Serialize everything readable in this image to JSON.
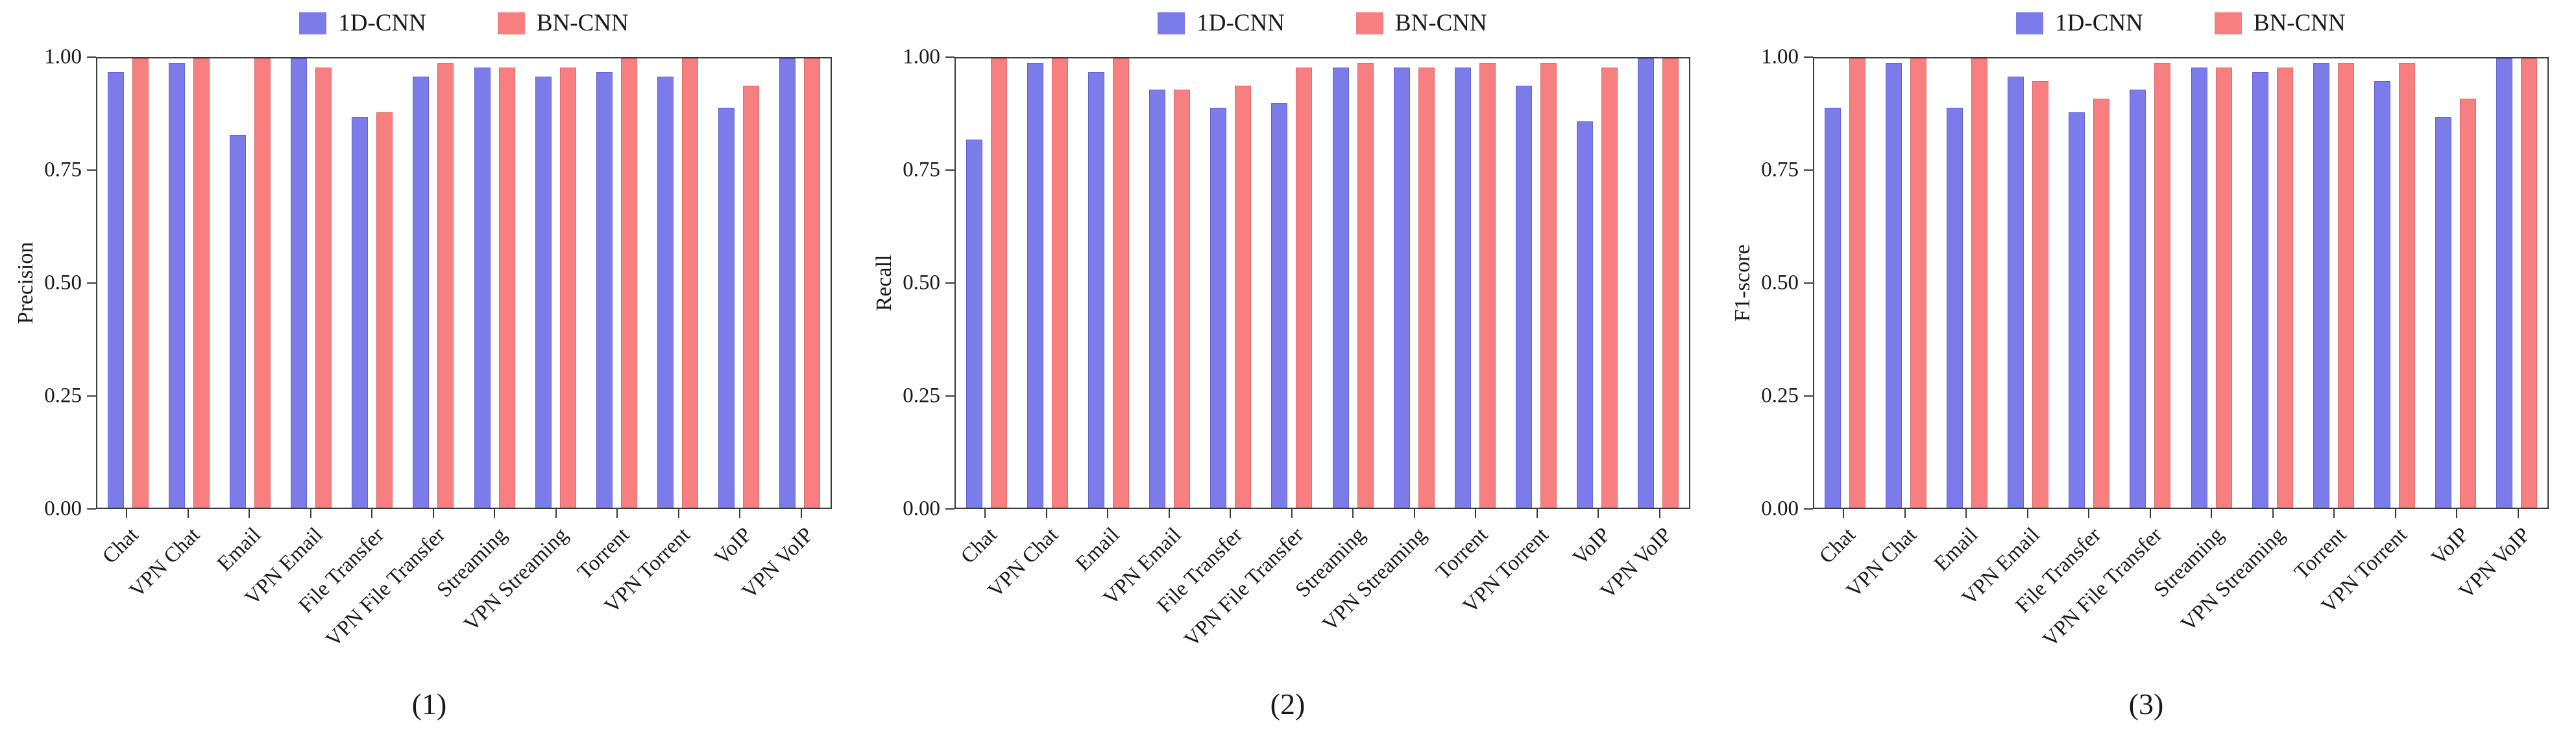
{
  "colors": {
    "axis": "#3c3c3c",
    "text": "#1a1a1a",
    "background": "#ffffff"
  },
  "chart_data": [
    {
      "type": "bar",
      "panel_caption": "(1)",
      "ylabel": "Precision",
      "ylim": [
        0,
        1
      ],
      "yticks": [
        "0.00",
        "0.25",
        "0.50",
        "0.75",
        "1.00"
      ],
      "grid": "off",
      "legend_position": "top-center",
      "categories": [
        "Chat",
        "VPN Chat",
        "Email",
        "VPN Email",
        "File Transfer",
        "VPN File Transfer",
        "Streaming",
        "VPN Streaming",
        "Torrent",
        "VPN Torrent",
        "VoIP",
        "VPN VoIP"
      ],
      "series": [
        {
          "name": "1D-CNN",
          "color": "#7b7cea",
          "edge_color": "#6263d2",
          "values": [
            0.97,
            0.99,
            0.83,
            1.0,
            0.87,
            0.96,
            0.98,
            0.96,
            0.97,
            0.96,
            0.89,
            1.0
          ]
        },
        {
          "name": "BN-CNN",
          "color": "#f77f7f",
          "edge_color": "#dd6a6a",
          "values": [
            1.0,
            1.0,
            1.0,
            0.98,
            0.88,
            0.99,
            0.98,
            0.98,
            1.0,
            1.0,
            0.94,
            1.0
          ]
        }
      ]
    },
    {
      "type": "bar",
      "panel_caption": "(2)",
      "ylabel": "Recall",
      "ylim": [
        0,
        1
      ],
      "yticks": [
        "0.00",
        "0.25",
        "0.50",
        "0.75",
        "1.00"
      ],
      "grid": "off",
      "legend_position": "top-center",
      "categories": [
        "Chat",
        "VPN Chat",
        "Email",
        "VPN Email",
        "File Transfer",
        "VPN File Transfer",
        "Streaming",
        "VPN Streaming",
        "Torrent",
        "VPN Torrent",
        "VoIP",
        "VPN VoIP"
      ],
      "series": [
        {
          "name": "1D-CNN",
          "color": "#7b7cea",
          "edge_color": "#6263d2",
          "values": [
            0.82,
            0.99,
            0.97,
            0.93,
            0.89,
            0.9,
            0.98,
            0.98,
            0.98,
            0.94,
            0.86,
            1.0
          ]
        },
        {
          "name": "BN-CNN",
          "color": "#f77f7f",
          "edge_color": "#dd6a6a",
          "values": [
            1.0,
            1.0,
            1.0,
            0.93,
            0.94,
            0.98,
            0.99,
            0.98,
            0.99,
            0.99,
            0.98,
            1.0
          ]
        }
      ]
    },
    {
      "type": "bar",
      "panel_caption": "(3)",
      "ylabel": "F1-score",
      "ylim": [
        0,
        1
      ],
      "yticks": [
        "0.00",
        "0.25",
        "0.50",
        "0.75",
        "1.00"
      ],
      "grid": "off",
      "legend_position": "top-center",
      "categories": [
        "Chat",
        "VPN Chat",
        "Email",
        "VPN Email",
        "File Transfer",
        "VPN File Transfer",
        "Streaming",
        "VPN Streaming",
        "Torrent",
        "VPN Torrent",
        "VoIP",
        "VPN VoIP"
      ],
      "series": [
        {
          "name": "1D-CNN",
          "color": "#7b7cea",
          "edge_color": "#6263d2",
          "values": [
            0.89,
            0.99,
            0.89,
            0.96,
            0.88,
            0.93,
            0.98,
            0.97,
            0.99,
            0.95,
            0.87,
            1.0
          ]
        },
        {
          "name": "BN-CNN",
          "color": "#f77f7f",
          "edge_color": "#dd6a6a",
          "values": [
            1.0,
            1.0,
            1.0,
            0.95,
            0.91,
            0.99,
            0.98,
            0.98,
            0.99,
            0.99,
            0.91,
            1.0
          ]
        }
      ]
    }
  ]
}
